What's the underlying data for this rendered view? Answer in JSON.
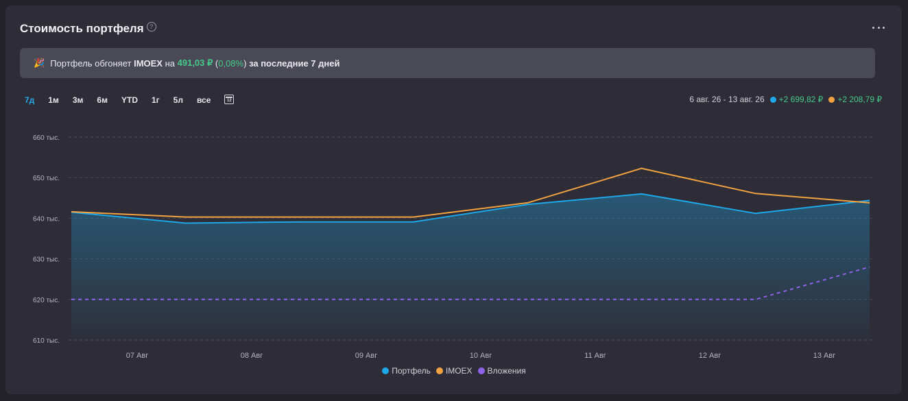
{
  "header": {
    "title": "Стоимость портфеля",
    "help_icon": "help-circle-icon",
    "menu_icon": "more-horizontal-icon"
  },
  "banner": {
    "emoji": "🎉",
    "text_before": "Портфель обгоняет ",
    "index": "IMOEX",
    "text_mid": " на ",
    "amount": "491,03 ₽",
    "percent_open": " (",
    "percent": "0,08%",
    "percent_close": ")",
    "text_after": " за последние 7 дней"
  },
  "periods": {
    "items": [
      "7д",
      "1м",
      "3м",
      "6м",
      "YTD",
      "1г",
      "5л",
      "все"
    ],
    "active": "7д",
    "calendar_icon": "calendar-icon",
    "calendar_day": "12"
  },
  "range": {
    "dates": "6 авг. 26 - 13 авг. 26",
    "portfolio_change": "+2 699,82 ₽",
    "imoex_change": "+2 208,79 ₽"
  },
  "colors": {
    "portfolio": "#1ea8e8",
    "imoex": "#f2a341",
    "investments": "#8f63e8",
    "positive": "#46c98a"
  },
  "chart_data": {
    "type": "line",
    "x": [
      "06 Авг",
      "07 Авг",
      "08 Авг",
      "09 Авг",
      "10 Авг",
      "11 Авг",
      "12 Авг",
      "13 Авг"
    ],
    "x_tick_labels": [
      "07 Авг",
      "08 Авг",
      "09 Авг",
      "10 Авг",
      "11 Авг",
      "12 Авг",
      "13 Авг"
    ],
    "y_tick_labels": [
      "610 тыс.",
      "620 тыс.",
      "630 тыс.",
      "640 тыс.",
      "650 тыс.",
      "660 тыс."
    ],
    "y_ticks": [
      610000,
      620000,
      630000,
      640000,
      650000,
      660000
    ],
    "ylim": [
      610000,
      660000
    ],
    "grid": true,
    "legend_position": "bottom",
    "series": [
      {
        "name": "Портфель",
        "color": "#1ea8e8",
        "style": "area",
        "x": [
          0,
          1,
          2,
          3,
          4,
          5,
          6,
          7
        ],
        "values": [
          641500,
          638800,
          639100,
          639100,
          643400,
          646000,
          641200,
          644400
        ]
      },
      {
        "name": "IMOEX",
        "color": "#f2a341",
        "style": "line",
        "x": [
          0,
          1,
          2,
          3,
          4,
          5,
          6,
          7
        ],
        "values": [
          641600,
          640300,
          640300,
          640300,
          643800,
          652300,
          646100,
          643800
        ]
      },
      {
        "name": "Вложения",
        "color": "#8f63e8",
        "style": "dashed",
        "x": [
          0,
          1,
          2,
          3,
          4,
          5,
          6,
          7
        ],
        "values": [
          620000,
          620000,
          620000,
          620000,
          620000,
          620000,
          620000,
          628000
        ]
      }
    ]
  }
}
